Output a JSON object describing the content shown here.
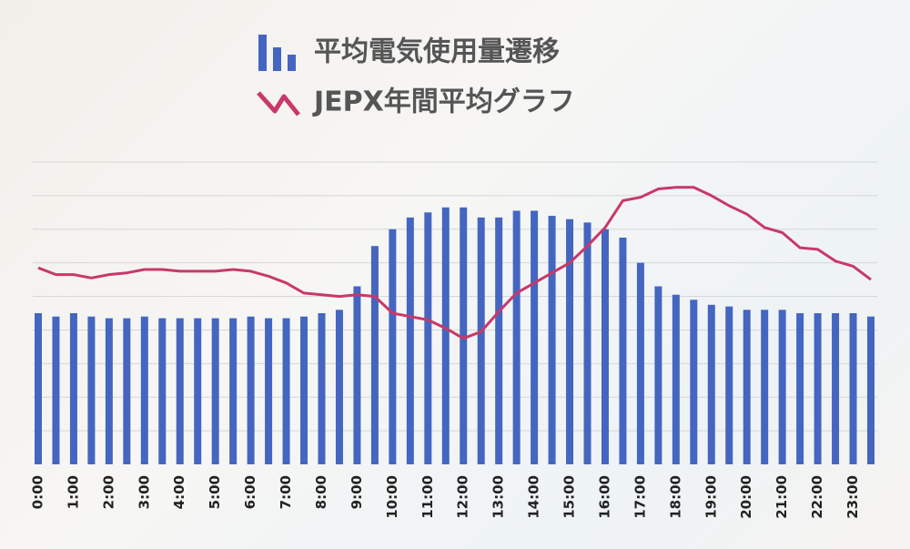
{
  "chart_data": {
    "type": "bar-line",
    "categories": [
      "0:00",
      null,
      "1:00",
      null,
      "2:00",
      null,
      "3:00",
      null,
      "4:00",
      null,
      "5:00",
      null,
      "6:00",
      null,
      "7:00",
      null,
      "8:00",
      null,
      "9:00",
      null,
      "10:00",
      null,
      "11:00",
      null,
      "12:00",
      null,
      "13:00",
      null,
      "14:00",
      null,
      "15:00",
      null,
      "16:00",
      null,
      "17:00",
      null,
      "18:00",
      null,
      "19:00",
      null,
      "20:00",
      null,
      "21:00",
      null,
      "22:00",
      null,
      "23:00",
      null
    ],
    "series": [
      {
        "name": "平均電気使用量遷移",
        "type": "bar",
        "color": "#4466c0",
        "values": [
          4.5,
          4.4,
          4.5,
          4.4,
          4.35,
          4.35,
          4.4,
          4.35,
          4.35,
          4.35,
          4.35,
          4.35,
          4.4,
          4.35,
          4.35,
          4.4,
          4.5,
          4.6,
          5.3,
          6.5,
          7.0,
          7.35,
          7.5,
          7.65,
          7.65,
          7.35,
          7.35,
          7.55,
          7.55,
          7.4,
          7.3,
          7.2,
          7.0,
          6.75,
          6.0,
          5.3,
          5.05,
          4.9,
          4.75,
          4.7,
          4.6,
          4.6,
          4.6,
          4.5,
          4.5,
          4.5,
          4.5,
          4.4
        ]
      },
      {
        "name": "JEPX年間平均グラフ",
        "type": "line",
        "color": "#c9386a",
        "values": [
          5.85,
          5.65,
          5.65,
          5.55,
          5.65,
          5.7,
          5.8,
          5.8,
          5.75,
          5.75,
          5.75,
          5.8,
          5.75,
          5.6,
          5.4,
          5.1,
          5.05,
          5.0,
          5.05,
          5.0,
          4.5,
          4.4,
          4.3,
          4.05,
          3.75,
          3.95,
          4.55,
          5.1,
          5.4,
          5.7,
          6.0,
          6.5,
          7.05,
          7.85,
          7.95,
          8.2,
          8.25,
          8.25,
          8.0,
          7.7,
          7.45,
          7.05,
          6.9,
          6.45,
          6.4,
          6.05,
          5.9,
          5.5
        ]
      }
    ],
    "ylim": [
      0,
      9
    ],
    "yticks": [
      1,
      2,
      3,
      4,
      5,
      6,
      7,
      8,
      9
    ],
    "grid": true
  }
}
